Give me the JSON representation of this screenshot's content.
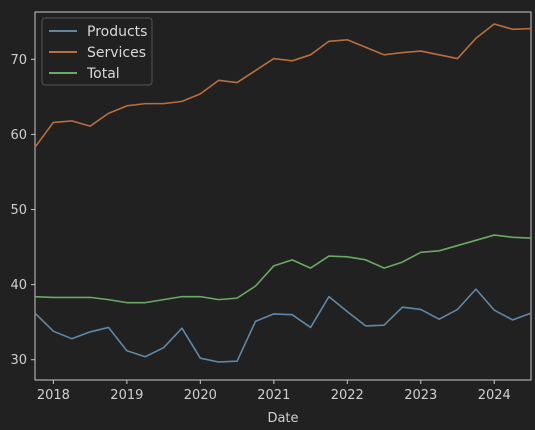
{
  "chart_data": {
    "type": "line",
    "xlabel": "Date",
    "ylabel": "",
    "title": "",
    "x": [
      "2017-10",
      "2018-01",
      "2018-04",
      "2018-07",
      "2018-10",
      "2019-01",
      "2019-04",
      "2019-07",
      "2019-10",
      "2020-01",
      "2020-04",
      "2020-07",
      "2020-10",
      "2021-01",
      "2021-04",
      "2021-07",
      "2021-10",
      "2022-01",
      "2022-04",
      "2022-07",
      "2022-10",
      "2023-01",
      "2023-04",
      "2023-07",
      "2023-10",
      "2024-01",
      "2024-04",
      "2024-07"
    ],
    "xlim": [
      "2017-10",
      "2024-07"
    ],
    "ylim": [
      27.3,
      76.3
    ],
    "x_ticks": [
      "2018",
      "2019",
      "2020",
      "2021",
      "2022",
      "2023",
      "2024"
    ],
    "y_ticks": [
      30,
      40,
      50,
      60,
      70
    ],
    "grid": false,
    "legend_position": "top-left",
    "series": [
      {
        "name": "Products",
        "color": "#5f88a8",
        "values": [
          36.2,
          33.8,
          32.8,
          33.7,
          34.3,
          31.2,
          30.4,
          31.6,
          34.2,
          30.2,
          29.7,
          29.8,
          35.1,
          36.1,
          36.0,
          34.3,
          38.4,
          36.4,
          34.5,
          34.6,
          37.0,
          36.7,
          35.4,
          36.7,
          39.4,
          36.6,
          35.3,
          36.2
        ]
      },
      {
        "name": "Services",
        "color": "#b86e3d",
        "values": [
          58.3,
          61.6,
          61.8,
          61.1,
          62.8,
          63.8,
          64.1,
          64.1,
          64.4,
          65.4,
          67.2,
          66.9,
          68.5,
          70.1,
          69.8,
          70.6,
          72.4,
          72.6,
          71.6,
          70.6,
          70.9,
          71.1,
          70.6,
          70.1,
          72.8,
          74.7,
          74.0,
          74.1
        ]
      },
      {
        "name": "Total",
        "color": "#6aaa64",
        "values": [
          38.4,
          38.3,
          38.3,
          38.3,
          38.0,
          37.6,
          37.6,
          38.0,
          38.4,
          38.4,
          38.0,
          38.2,
          39.8,
          42.5,
          43.3,
          42.2,
          43.8,
          43.7,
          43.3,
          42.2,
          43.0,
          44.3,
          44.5,
          45.2,
          45.9,
          46.6,
          46.3,
          46.2
        ]
      }
    ]
  }
}
